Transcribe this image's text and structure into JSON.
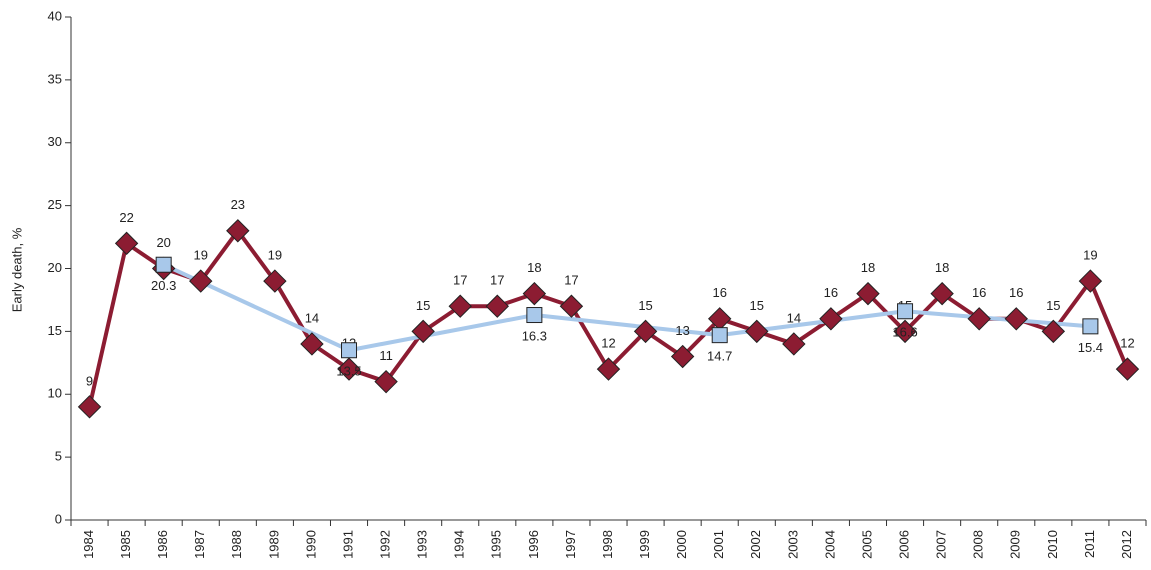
{
  "chart_data": {
    "type": "line",
    "y_label": "Early death, %",
    "x": [
      1984,
      1985,
      1986,
      1987,
      1988,
      1989,
      1990,
      1991,
      1992,
      1993,
      1994,
      1995,
      1996,
      1997,
      1998,
      1999,
      2000,
      2001,
      2002,
      2003,
      2004,
      2005,
      2006,
      2007,
      2008,
      2009,
      2010,
      2011,
      2012
    ],
    "xlim": [
      1983.5,
      2012.5
    ],
    "xticks": [
      1984,
      1985,
      1986,
      1987,
      1988,
      1989,
      1990,
      1991,
      1992,
      1993,
      1994,
      1995,
      1996,
      1997,
      1998,
      1999,
      2000,
      2001,
      2002,
      2003,
      2004,
      2005,
      2006,
      2007,
      2008,
      2009,
      2010,
      2011,
      2012
    ],
    "ylim": [
      0,
      40
    ],
    "yticks": [
      0,
      5,
      10,
      15,
      20,
      25,
      30,
      35,
      40
    ],
    "series": [
      {
        "color": "#8c1c32",
        "marker": "diamond",
        "values": [
          9,
          22,
          20,
          19,
          23,
          19,
          14,
          12,
          11,
          15,
          17,
          17,
          18,
          17,
          12,
          15,
          13,
          16,
          15,
          14,
          16,
          18,
          15,
          18,
          16,
          16,
          15,
          19,
          12
        ]
      },
      {
        "color": "#a8c8ea",
        "marker": "square",
        "x": [
          1986,
          1991,
          1996,
          2001,
          2006,
          2011
        ],
        "values": [
          20.3,
          13.5,
          16.3,
          14.7,
          16.6,
          15.4
        ]
      }
    ]
  }
}
